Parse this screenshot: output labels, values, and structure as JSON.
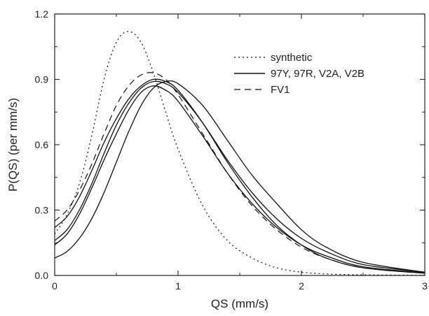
{
  "chart_data": {
    "type": "line",
    "xlabel": "QS (mm/s)",
    "ylabel": "P(QS) (per mm/s)",
    "xlim": [
      0,
      3
    ],
    "ylim": [
      0,
      1.2
    ],
    "xticks": [
      0,
      1,
      2,
      3
    ],
    "yticks": [
      0.0,
      0.3,
      0.6,
      0.9,
      1.2
    ],
    "xtick_labels": [
      "0",
      "1",
      "2",
      "3"
    ],
    "ytick_labels": [
      "0.0",
      "0.3",
      "0.6",
      "0.9",
      "1.2"
    ],
    "grid": false,
    "legend_position": "top-right",
    "legend": [
      {
        "label": "synthetic",
        "style": "dotted"
      },
      {
        "label": "97Y, 97R, V2A, V2B",
        "style": "solid"
      },
      {
        "label": "FV1",
        "style": "dashed"
      }
    ],
    "series": [
      {
        "style": "dotted",
        "x": [
          0,
          0.1,
          0.2,
          0.3,
          0.4,
          0.5,
          0.6,
          0.7,
          0.8,
          0.9,
          1.0,
          1.2,
          1.4,
          1.6,
          1.8,
          2.0,
          2.2,
          2.5,
          3.0
        ],
        "y": [
          0.19,
          0.28,
          0.42,
          0.64,
          0.9,
          1.07,
          1.12,
          1.07,
          0.93,
          0.75,
          0.58,
          0.32,
          0.16,
          0.08,
          0.035,
          0.015,
          0.007,
          0.003,
          0.001
        ]
      },
      {
        "style": "solid",
        "x": [
          0,
          0.1,
          0.2,
          0.3,
          0.4,
          0.5,
          0.6,
          0.7,
          0.8,
          0.9,
          1.0,
          1.2,
          1.4,
          1.6,
          1.8,
          2.0,
          2.2,
          2.5,
          3.0
        ],
        "y": [
          0.22,
          0.27,
          0.36,
          0.48,
          0.61,
          0.72,
          0.81,
          0.87,
          0.9,
          0.89,
          0.85,
          0.7,
          0.52,
          0.36,
          0.23,
          0.14,
          0.08,
          0.035,
          0.01
        ]
      },
      {
        "style": "solid",
        "x": [
          0,
          0.1,
          0.2,
          0.3,
          0.4,
          0.5,
          0.6,
          0.7,
          0.8,
          0.9,
          1.0,
          1.2,
          1.4,
          1.6,
          1.8,
          2.0,
          2.2,
          2.5,
          3.0
        ],
        "y": [
          0.16,
          0.21,
          0.3,
          0.42,
          0.56,
          0.69,
          0.79,
          0.86,
          0.89,
          0.88,
          0.84,
          0.7,
          0.53,
          0.38,
          0.26,
          0.17,
          0.11,
          0.05,
          0.015
        ]
      },
      {
        "style": "solid",
        "x": [
          0,
          0.1,
          0.2,
          0.3,
          0.4,
          0.5,
          0.6,
          0.7,
          0.8,
          0.9,
          1.0,
          1.2,
          1.4,
          1.6,
          1.8,
          2.0,
          2.2,
          2.5,
          3.0
        ],
        "y": [
          0.14,
          0.19,
          0.28,
          0.4,
          0.53,
          0.65,
          0.76,
          0.84,
          0.87,
          0.85,
          0.8,
          0.64,
          0.47,
          0.33,
          0.22,
          0.14,
          0.09,
          0.04,
          0.012
        ]
      },
      {
        "style": "solid",
        "x": [
          0,
          0.1,
          0.2,
          0.3,
          0.4,
          0.5,
          0.6,
          0.7,
          0.8,
          0.9,
          1.0,
          1.2,
          1.4,
          1.6,
          1.8,
          2.0,
          2.2,
          2.5,
          3.0
        ],
        "y": [
          0.08,
          0.11,
          0.17,
          0.26,
          0.38,
          0.52,
          0.66,
          0.78,
          0.86,
          0.89,
          0.88,
          0.78,
          0.62,
          0.46,
          0.33,
          0.21,
          0.13,
          0.06,
          0.015
        ]
      },
      {
        "style": "dashed",
        "x": [
          0,
          0.1,
          0.2,
          0.3,
          0.4,
          0.5,
          0.6,
          0.7,
          0.8,
          0.9,
          1.0,
          1.2,
          1.4,
          1.6,
          1.8,
          2.0,
          2.2,
          2.5,
          3.0
        ],
        "y": [
          0.25,
          0.3,
          0.39,
          0.51,
          0.65,
          0.78,
          0.87,
          0.92,
          0.93,
          0.9,
          0.83,
          0.65,
          0.47,
          0.32,
          0.21,
          0.13,
          0.08,
          0.035,
          0.01
        ]
      }
    ]
  }
}
